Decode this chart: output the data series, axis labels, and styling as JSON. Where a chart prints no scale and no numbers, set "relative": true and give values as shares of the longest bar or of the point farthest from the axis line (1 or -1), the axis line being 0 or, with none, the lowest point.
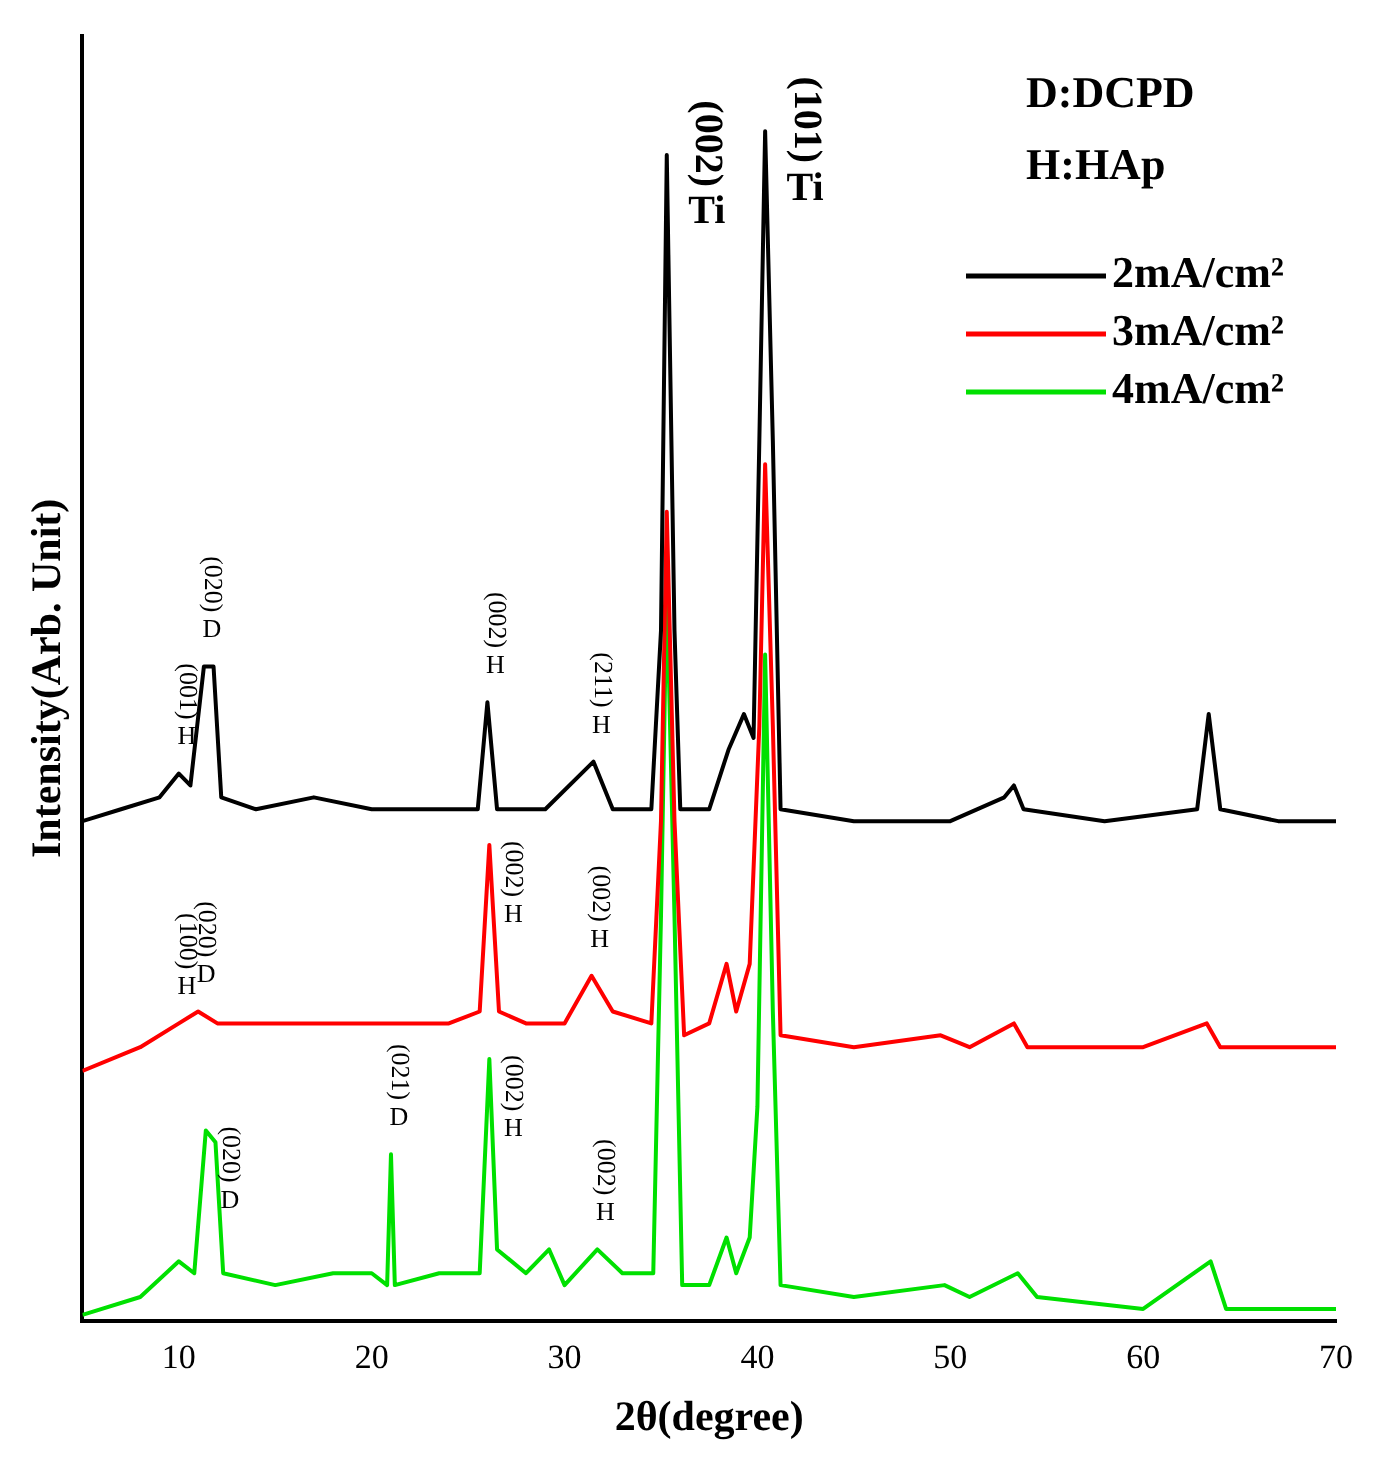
{
  "chart_data": {
    "type": "line",
    "relative": true,
    "xlabel": "2θ(degree)",
    "ylabel": "Intensity(Arb. Unit)",
    "xlim": [
      5,
      70
    ],
    "xticks": [
      10,
      20,
      30,
      40,
      50,
      60,
      70
    ],
    "legend": "top right",
    "marker": "none",
    "line_style": "solid",
    "grid": false,
    "series": [
      {
        "name": "2mA/cm²",
        "color": "#000000",
        "x": [
          5,
          7,
          9,
          10,
          10.6,
          11.3,
          11.8,
          12.2,
          14,
          17,
          20,
          23,
          25.5,
          26,
          26.5,
          29,
          31.5,
          32.5,
          34.5,
          35,
          35.3,
          35.7,
          36,
          37.5,
          38.5,
          39.3,
          39.8,
          40.1,
          40.4,
          40.8,
          41.2,
          45,
          50,
          52.8,
          53.3,
          53.8,
          58,
          62.8,
          63.4,
          64,
          67,
          70
        ],
        "values": [
          0.42,
          0.43,
          0.44,
          0.46,
          0.45,
          0.55,
          0.55,
          0.44,
          0.43,
          0.44,
          0.43,
          0.43,
          0.43,
          0.52,
          0.43,
          0.43,
          0.47,
          0.43,
          0.43,
          0.58,
          0.98,
          0.58,
          0.43,
          0.43,
          0.48,
          0.51,
          0.49,
          0.74,
          1,
          0.74,
          0.43,
          0.42,
          0.42,
          0.44,
          0.45,
          0.43,
          0.42,
          0.43,
          0.51,
          0.43,
          0.42,
          0.42
        ]
      },
      {
        "name": "3mA/cm²",
        "color": "#ff0000",
        "x": [
          5,
          8,
          10,
          11,
          12,
          15,
          18,
          21,
          24,
          25.6,
          26.1,
          26.6,
          28,
          30,
          31.4,
          32.5,
          34.5,
          35,
          35.3,
          35.7,
          36.2,
          37.5,
          38.4,
          38.9,
          39.6,
          40.1,
          40.4,
          40.8,
          41.2,
          45,
          49.5,
          51,
          53.3,
          54,
          60,
          63.3,
          64,
          67,
          70
        ],
        "values": [
          0.21,
          0.23,
          0.25,
          0.26,
          0.25,
          0.25,
          0.25,
          0.25,
          0.25,
          0.26,
          0.4,
          0.26,
          0.25,
          0.25,
          0.29,
          0.26,
          0.25,
          0.42,
          0.68,
          0.42,
          0.24,
          0.25,
          0.3,
          0.26,
          0.3,
          0.5,
          0.72,
          0.5,
          0.24,
          0.23,
          0.24,
          0.23,
          0.25,
          0.23,
          0.23,
          0.25,
          0.23,
          0.23,
          0.23
        ]
      },
      {
        "name": "4mA/cm²",
        "color": "#00e000",
        "x": [
          5,
          8,
          10,
          10.8,
          11.4,
          11.9,
          12.3,
          15,
          18,
          20,
          20.8,
          21,
          21.2,
          23.5,
          25.6,
          26.1,
          26.5,
          28,
          29.2,
          30,
          31.7,
          33,
          34.6,
          35,
          35.3,
          35.7,
          36.1,
          37.5,
          38.4,
          38.9,
          39.6,
          40,
          40.4,
          40.8,
          41.2,
          45,
          49.7,
          51,
          53.5,
          54.5,
          60,
          63.5,
          64.3,
          67,
          70
        ],
        "values": [
          0.005,
          0.02,
          0.05,
          0.04,
          0.16,
          0.15,
          0.04,
          0.03,
          0.04,
          0.04,
          0.03,
          0.14,
          0.03,
          0.04,
          0.04,
          0.22,
          0.06,
          0.04,
          0.06,
          0.03,
          0.06,
          0.04,
          0.04,
          0.34,
          0.62,
          0.34,
          0.03,
          0.03,
          0.07,
          0.04,
          0.07,
          0.18,
          0.56,
          0.26,
          0.03,
          0.02,
          0.03,
          0.02,
          0.04,
          0.02,
          0.01,
          0.05,
          0.01,
          0.01,
          0.01
        ]
      }
    ],
    "annotations": [
      "D:DCPD",
      "H:HAp",
      {
        "text": "(001)",
        "x": 10,
        "y": 0.46
      },
      {
        "text": "H",
        "x": 10,
        "y": 0.46
      },
      {
        "text": "(020)",
        "x": 11.3,
        "y": 0.55
      },
      {
        "text": "D",
        "x": 11.3,
        "y": 0.55
      },
      {
        "text": "(002)",
        "x": 26,
        "y": 0.52
      },
      {
        "text": "H",
        "x": 26,
        "y": 0.52
      },
      {
        "text": "(211)",
        "x": 31.5,
        "y": 0.47
      },
      {
        "text": "H",
        "x": 31.5,
        "y": 0.47
      },
      {
        "text": "(002)",
        "x": 35.3,
        "y": 0.98
      },
      {
        "text": "Ti",
        "x": 35.3,
        "y": 0.98
      },
      {
        "text": "(101)",
        "x": 40.4,
        "y": 1
      },
      {
        "text": "Ti",
        "x": 40.4,
        "y": 1
      },
      {
        "text": "(100)",
        "x": 10,
        "y": 0.25
      },
      {
        "text": "H",
        "x": 10,
        "y": 0.25
      },
      {
        "text": "(020)",
        "x": 11,
        "y": 0.26
      },
      {
        "text": "D",
        "x": 11,
        "y": 0.26
      },
      {
        "text": "(002)",
        "x": 26.1,
        "y": 0.4
      },
      {
        "text": "H",
        "x": 26.1,
        "y": 0.4
      },
      {
        "text": "(002)",
        "x": 31.4,
        "y": 0.29
      },
      {
        "text": "H",
        "x": 31.4,
        "y": 0.29
      },
      {
        "text": "(020)",
        "x": 11.4,
        "y": 0.16
      },
      {
        "text": "D",
        "x": 11.4,
        "y": 0.16
      },
      {
        "text": "(021)",
        "x": 21,
        "y": 0.14
      },
      {
        "text": "D",
        "x": 21,
        "y": 0.14
      },
      {
        "text": "(002)",
        "x": 26.1,
        "y": 0.22
      },
      {
        "text": "H",
        "x": 26.1,
        "y": 0.22
      },
      {
        "text": "(002)",
        "x": 31.7,
        "y": 0.06
      },
      {
        "text": "H",
        "x": 31.7,
        "y": 0.06
      }
    ]
  }
}
